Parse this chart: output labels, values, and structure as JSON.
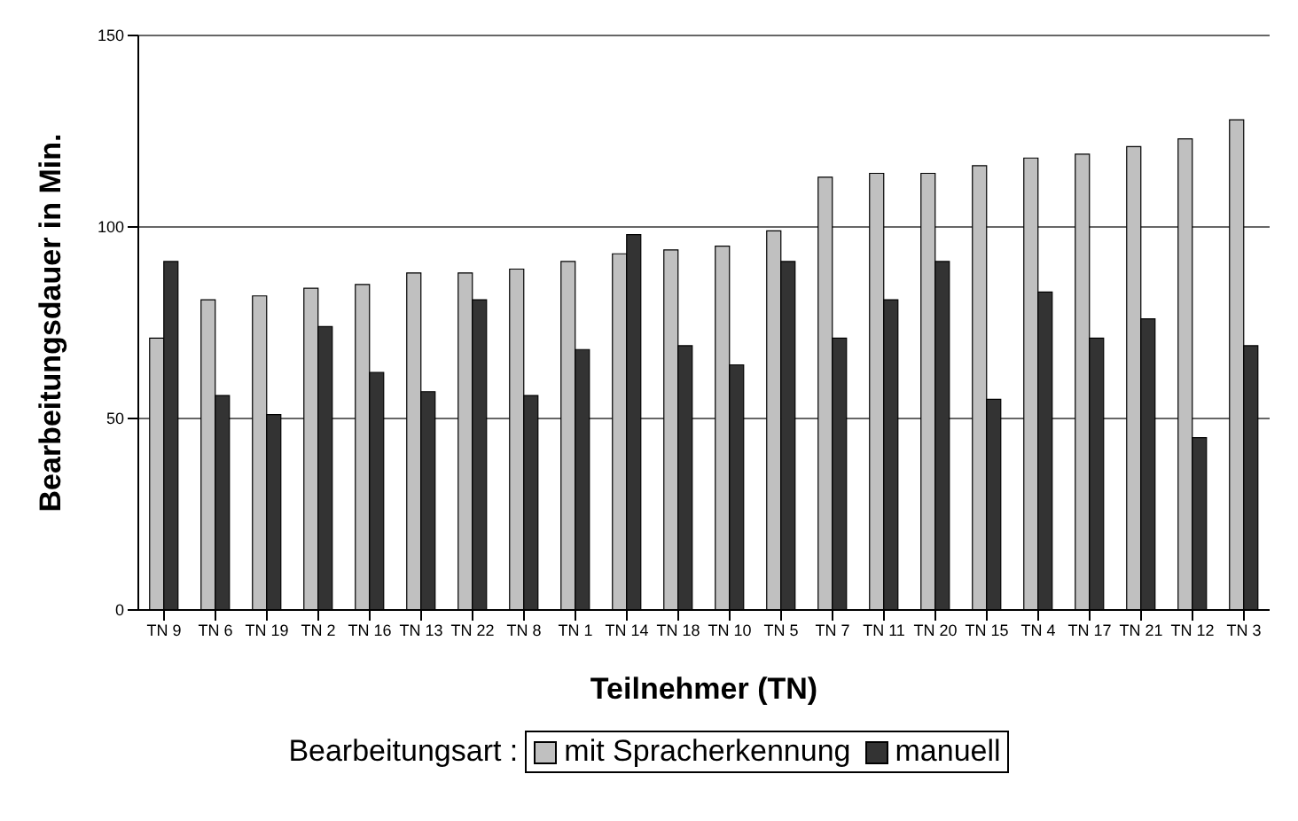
{
  "chart_data": {
    "type": "bar",
    "xlabel": "Teilnehmer (TN)",
    "ylabel": "Bearbeitungsdauer in Min.",
    "legend_title": "Bearbeitungsart :",
    "categories": [
      "TN 9",
      "TN 6",
      "TN 19",
      "TN 2",
      "TN 16",
      "TN 13",
      "TN 22",
      "TN 8",
      "TN 1",
      "TN 14",
      "TN 18",
      "TN 10",
      "TN 5",
      "TN 7",
      "TN 11",
      "TN 20",
      "TN 15",
      "TN 4",
      "TN 17",
      "TN 21",
      "TN 12",
      "TN 3"
    ],
    "series": [
      {
        "name": "mit Spracherkennung",
        "color": "#c0c0c0",
        "values": [
          71,
          81,
          82,
          84,
          85,
          88,
          88,
          89,
          91,
          93,
          94,
          95,
          99,
          113,
          114,
          114,
          116,
          118,
          119,
          121,
          123,
          128
        ]
      },
      {
        "name": "manuell",
        "color": "#333333",
        "values": [
          91,
          56,
          51,
          74,
          62,
          57,
          81,
          56,
          68,
          98,
          69,
          64,
          91,
          71,
          81,
          91,
          55,
          83,
          71,
          76,
          45,
          69
        ]
      }
    ],
    "ylim": [
      0,
      150
    ],
    "yticks": [
      0,
      50,
      100,
      150
    ],
    "grid": "y",
    "legend": "bottom"
  }
}
